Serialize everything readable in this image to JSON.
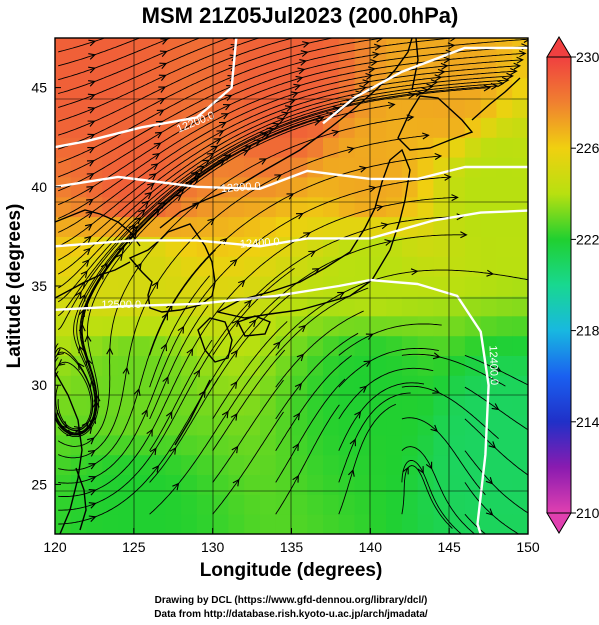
{
  "title": "MSM 21Z05Jul2023 (200.0hPa)",
  "x_axis": {
    "label": "Longitude (degrees)",
    "ticks": [
      "120",
      "125",
      "130",
      "135",
      "140",
      "145",
      "150"
    ]
  },
  "y_axis": {
    "label": "Latitude  (degrees)",
    "ticks": [
      "25",
      "30",
      "35",
      "40",
      "45"
    ]
  },
  "colorbar": {
    "ticks": [
      "210",
      "214",
      "218",
      "222",
      "226",
      "230"
    ]
  },
  "credits": {
    "line1": "Drawing by DCL (https://www.gfd-dennou.org/library/dcl/)",
    "line2": "Data from http://database.rish.kyoto-u.ac.jp/arch/jmadata/"
  },
  "contour_labels": [
    "12200.0",
    "12300.0",
    "12400.0",
    "12500.0",
    "12400.0"
  ],
  "chart_data": {
    "type": "heatmap",
    "title": "MSM 21Z05Jul2023 (200.0hPa)",
    "xlabel": "Longitude (degrees)",
    "ylabel": "Latitude  (degrees)",
    "xlim": [
      120,
      150
    ],
    "ylim": [
      22.5,
      47.5
    ],
    "colorbar_range": [
      210,
      230
    ],
    "colorbar_ticks": [
      210,
      214,
      218,
      222,
      226,
      230
    ],
    "field_samples": [
      {
        "lon": 122,
        "lat": 46,
        "value": 229
      },
      {
        "lon": 135,
        "lat": 45,
        "value": 229
      },
      {
        "lon": 145,
        "lat": 45,
        "value": 227
      },
      {
        "lon": 125,
        "lat": 40,
        "value": 229
      },
      {
        "lon": 140,
        "lat": 40,
        "value": 227
      },
      {
        "lon": 148,
        "lat": 40,
        "value": 224
      },
      {
        "lon": 125,
        "lat": 36,
        "value": 225
      },
      {
        "lon": 140,
        "lat": 36,
        "value": 224
      },
      {
        "lon": 125,
        "lat": 30,
        "value": 223
      },
      {
        "lon": 140,
        "lat": 30,
        "value": 222
      },
      {
        "lon": 148,
        "lat": 27,
        "value": 221
      },
      {
        "lon": 125,
        "lat": 24,
        "value": 222
      }
    ],
    "contours": [
      {
        "label": "12200.0",
        "points": [
          [
            131.5,
            47.5
          ],
          [
            131.2,
            45
          ],
          [
            129,
            43.5
          ],
          [
            125.5,
            43
          ],
          [
            122,
            42.3
          ],
          [
            120,
            42
          ]
        ]
      },
      {
        "label": "12200.0",
        "points": [
          [
            137,
            43.2
          ],
          [
            139,
            44.5
          ],
          [
            142,
            45.8
          ],
          [
            146,
            47
          ],
          [
            150,
            47
          ]
        ]
      },
      {
        "label": "12300.0",
        "points": [
          [
            120,
            40
          ],
          [
            124,
            40.5
          ],
          [
            129,
            40
          ],
          [
            133,
            39.9
          ],
          [
            136,
            40.8
          ],
          [
            140,
            40.4
          ],
          [
            143,
            40.4
          ],
          [
            146,
            41
          ],
          [
            150,
            41
          ]
        ]
      },
      {
        "label": "12400.0",
        "points": [
          [
            120,
            37
          ],
          [
            125,
            37.3
          ],
          [
            129,
            37.3
          ],
          [
            133,
            37
          ],
          [
            136,
            37.4
          ],
          [
            140,
            37.4
          ],
          [
            144,
            38.3
          ],
          [
            147,
            38.7
          ],
          [
            150,
            38.8
          ]
        ]
      },
      {
        "label": "12500.0",
        "points": [
          [
            120,
            33.8
          ],
          [
            125,
            34
          ],
          [
            129,
            34.1
          ],
          [
            134,
            34.5
          ],
          [
            138,
            35
          ],
          [
            140,
            35.3
          ],
          [
            143,
            35.1
          ],
          [
            145.5,
            34.5
          ],
          [
            147,
            32.7
          ],
          [
            147.5,
            30
          ],
          [
            147.3,
            26.5
          ],
          [
            146.8,
            23
          ],
          [
            147,
            22.5
          ]
        ]
      }
    ]
  }
}
